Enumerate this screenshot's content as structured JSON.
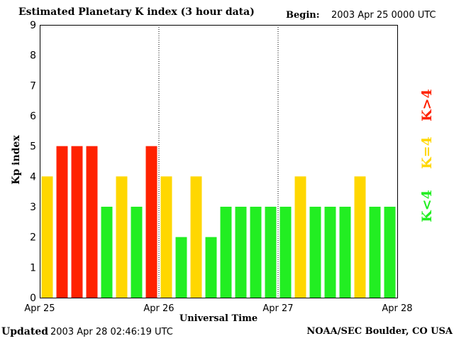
{
  "header": {
    "title": "Estimated Planetary K index (3 hour data)",
    "begin_label": "Begin:",
    "begin_value": "2003 Apr 25 0000 UTC"
  },
  "footer": {
    "updated_label": "Updated",
    "updated_value": "2003 Apr 28 02:46:19 UTC",
    "credit": "NOAA/SEC Boulder, CO USA"
  },
  "legend": [
    {
      "label": "K>4",
      "color": "#ff2200"
    },
    {
      "label": "K=4",
      "color": "#ffd700"
    },
    {
      "label": "K<4",
      "color": "#22ee22"
    }
  ],
  "chart_data": {
    "type": "bar",
    "title": "Estimated Planetary K index (3 hour data)",
    "xlabel": "Universal Time",
    "ylabel": "Kp index",
    "ylim": [
      0,
      9
    ],
    "yticks": [
      0,
      1,
      2,
      3,
      4,
      5,
      6,
      7,
      8,
      9
    ],
    "xtick_labels": [
      "Apr 25",
      "Apr 26",
      "Apr 27",
      "Apr 28"
    ],
    "day_separators": [
      "Apr 26",
      "Apr 27"
    ],
    "interval_hours": 3,
    "values": [
      4,
      5,
      5,
      5,
      3,
      4,
      3,
      5,
      4,
      2,
      4,
      2,
      3,
      3,
      3,
      3,
      3,
      4,
      3,
      3,
      3,
      4,
      3,
      3
    ],
    "colors": {
      "above": "#ff2200",
      "equal": "#ffd700",
      "below": "#22ee22"
    }
  }
}
